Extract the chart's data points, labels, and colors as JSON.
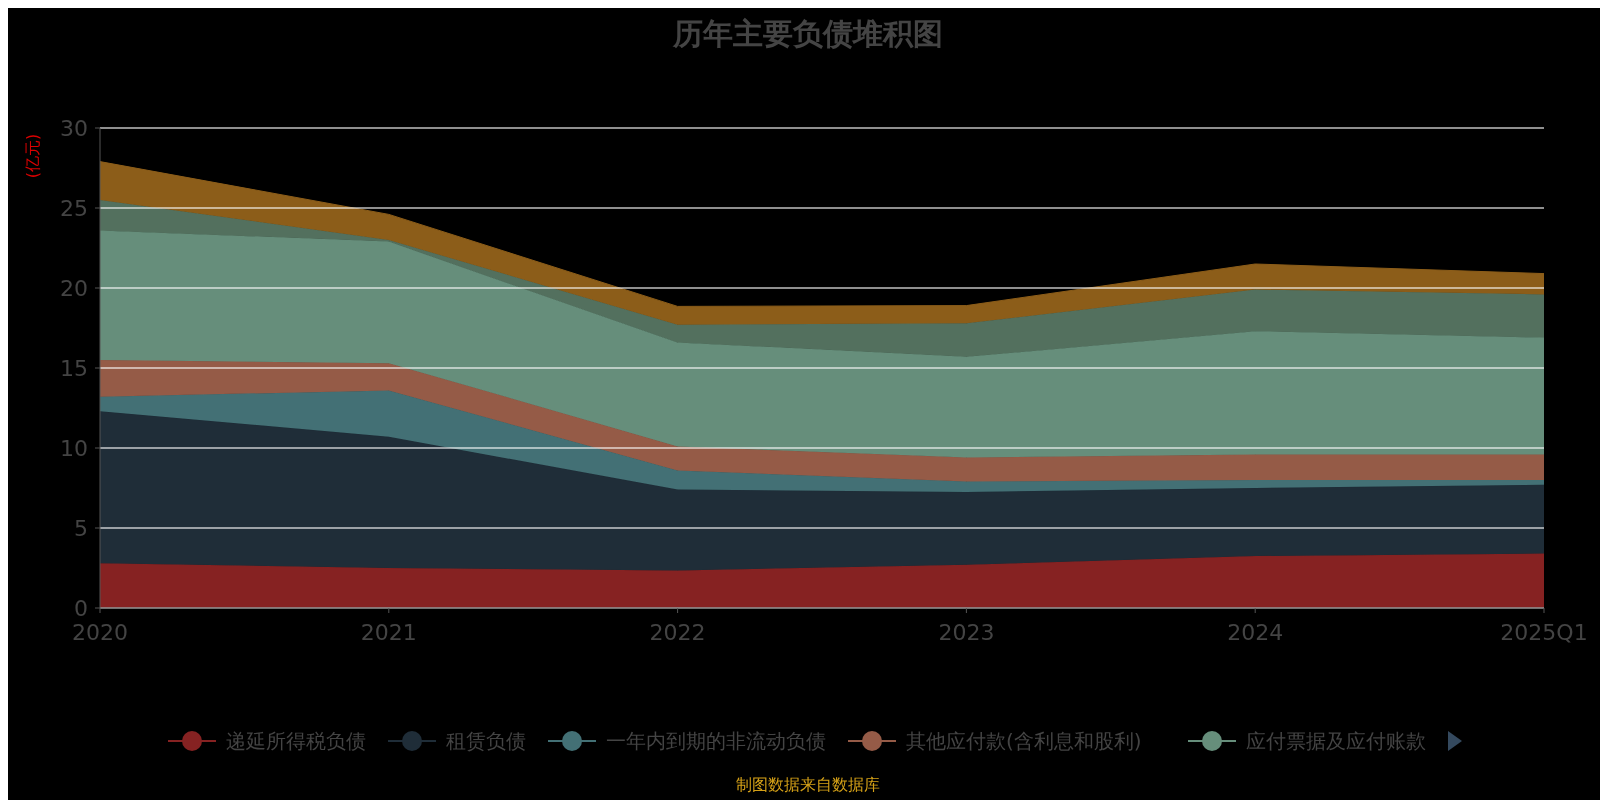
{
  "chart_data": {
    "type": "area",
    "stacked": true,
    "title": "历年主要负债堆积图",
    "ylabel": "(亿元)",
    "categories": [
      "2020",
      "2021",
      "2022",
      "2023",
      "2024",
      "2025Q1"
    ],
    "series": [
      {
        "name": "递延所得税负债",
        "color": "#862222",
        "values": [
          2.8,
          2.5,
          2.35,
          2.7,
          3.25,
          3.4
        ]
      },
      {
        "name": "租赁负债",
        "color": "#1f2d38",
        "values": [
          9.5,
          8.2,
          5.05,
          4.55,
          4.25,
          4.3
        ]
      },
      {
        "name": "一年内到期的非流动负债",
        "color": "#437075",
        "values": [
          0.9,
          2.9,
          1.2,
          0.65,
          0.5,
          0.3
        ]
      },
      {
        "name": "其他应付款(含利息和股利)",
        "color": "#955b47",
        "values": [
          2.3,
          1.7,
          1.5,
          1.5,
          1.6,
          1.6
        ]
      },
      {
        "name": "应付票据及应付账款",
        "color": "#668e7b",
        "values": [
          8.1,
          7.6,
          6.5,
          6.3,
          7.7,
          7.3
        ]
      },
      {
        "color": "#53705e",
        "values": [
          1.9,
          0.1,
          1.1,
          2.1,
          2.6,
          2.7
        ]
      },
      {
        "color": "#8c5d19",
        "values": [
          2.4,
          1.6,
          1.15,
          1.1,
          1.6,
          1.3
        ]
      }
    ],
    "ylim": [
      0,
      30
    ],
    "yticks": [
      0,
      5,
      10,
      15,
      20,
      25,
      30
    ],
    "grid": "y",
    "legend": "bottom",
    "marker": "none",
    "annotations": [
      "制图数据来自数据库"
    ]
  }
}
